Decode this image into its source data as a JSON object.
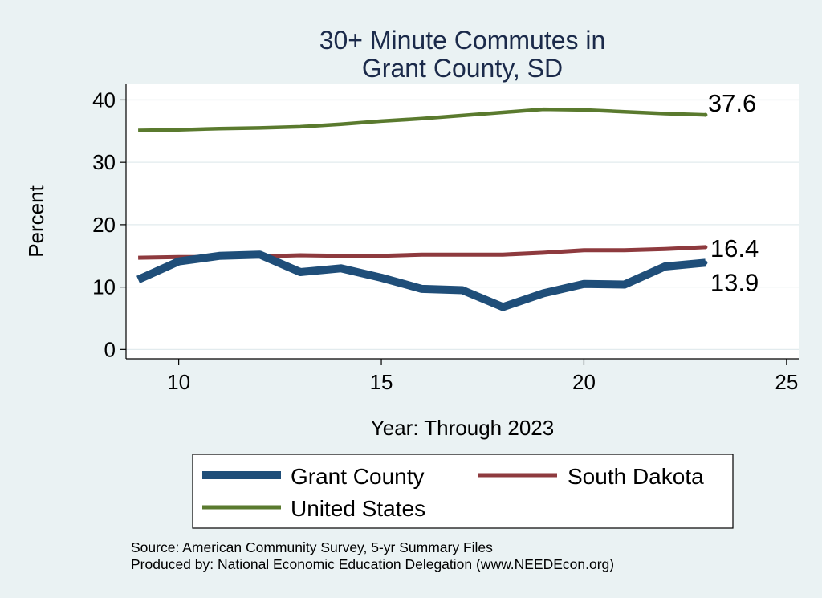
{
  "chart_data": {
    "type": "line",
    "title_lines": [
      "30+ Minute Commutes in",
      "Grant County, SD"
    ],
    "xlabel": "Year: Through 2023",
    "ylabel": "Percent",
    "xlim": [
      8.7,
      25.3
    ],
    "ylim": [
      -1.5,
      42.5
    ],
    "xticks": [
      10,
      15,
      20,
      25
    ],
    "yticks": [
      0,
      10,
      20,
      30,
      40
    ],
    "grid": "horizontal",
    "series": [
      {
        "name": "Grant County",
        "color": "#1f4e79",
        "x": [
          9,
          10,
          11,
          12,
          13,
          14,
          15,
          16,
          17,
          18,
          19,
          20,
          21,
          22,
          23
        ],
        "values": [
          11.2,
          14.1,
          15.0,
          15.2,
          12.4,
          13.0,
          11.5,
          9.7,
          9.5,
          6.8,
          9.0,
          10.5,
          10.4,
          13.3,
          13.9
        ],
        "end_label": "13.9"
      },
      {
        "name": "South Dakota",
        "color": "#8e3a3e",
        "x": [
          9,
          10,
          11,
          12,
          13,
          14,
          15,
          16,
          17,
          18,
          19,
          20,
          21,
          22,
          23
        ],
        "values": [
          14.7,
          14.8,
          14.8,
          14.9,
          15.1,
          15.0,
          15.0,
          15.2,
          15.2,
          15.2,
          15.5,
          15.9,
          15.9,
          16.1,
          16.4
        ],
        "end_label": "16.4"
      },
      {
        "name": "United States",
        "color": "#5a7a2e",
        "x": [
          9,
          10,
          11,
          12,
          13,
          14,
          15,
          16,
          17,
          18,
          19,
          20,
          21,
          22,
          23
        ],
        "values": [
          35.1,
          35.2,
          35.4,
          35.5,
          35.7,
          36.1,
          36.6,
          37.0,
          37.5,
          38.0,
          38.5,
          38.4,
          38.1,
          37.8,
          37.6
        ],
        "end_label": "37.6"
      }
    ],
    "legend": {
      "position": "bottom",
      "entries": [
        "Grant County",
        "South Dakota",
        "United States"
      ]
    },
    "notes": [
      "Source: American Community Survey, 5-yr Summary Files",
      "Produced by: National Economic Education Delegation (www.NEEDEcon.org)"
    ]
  }
}
